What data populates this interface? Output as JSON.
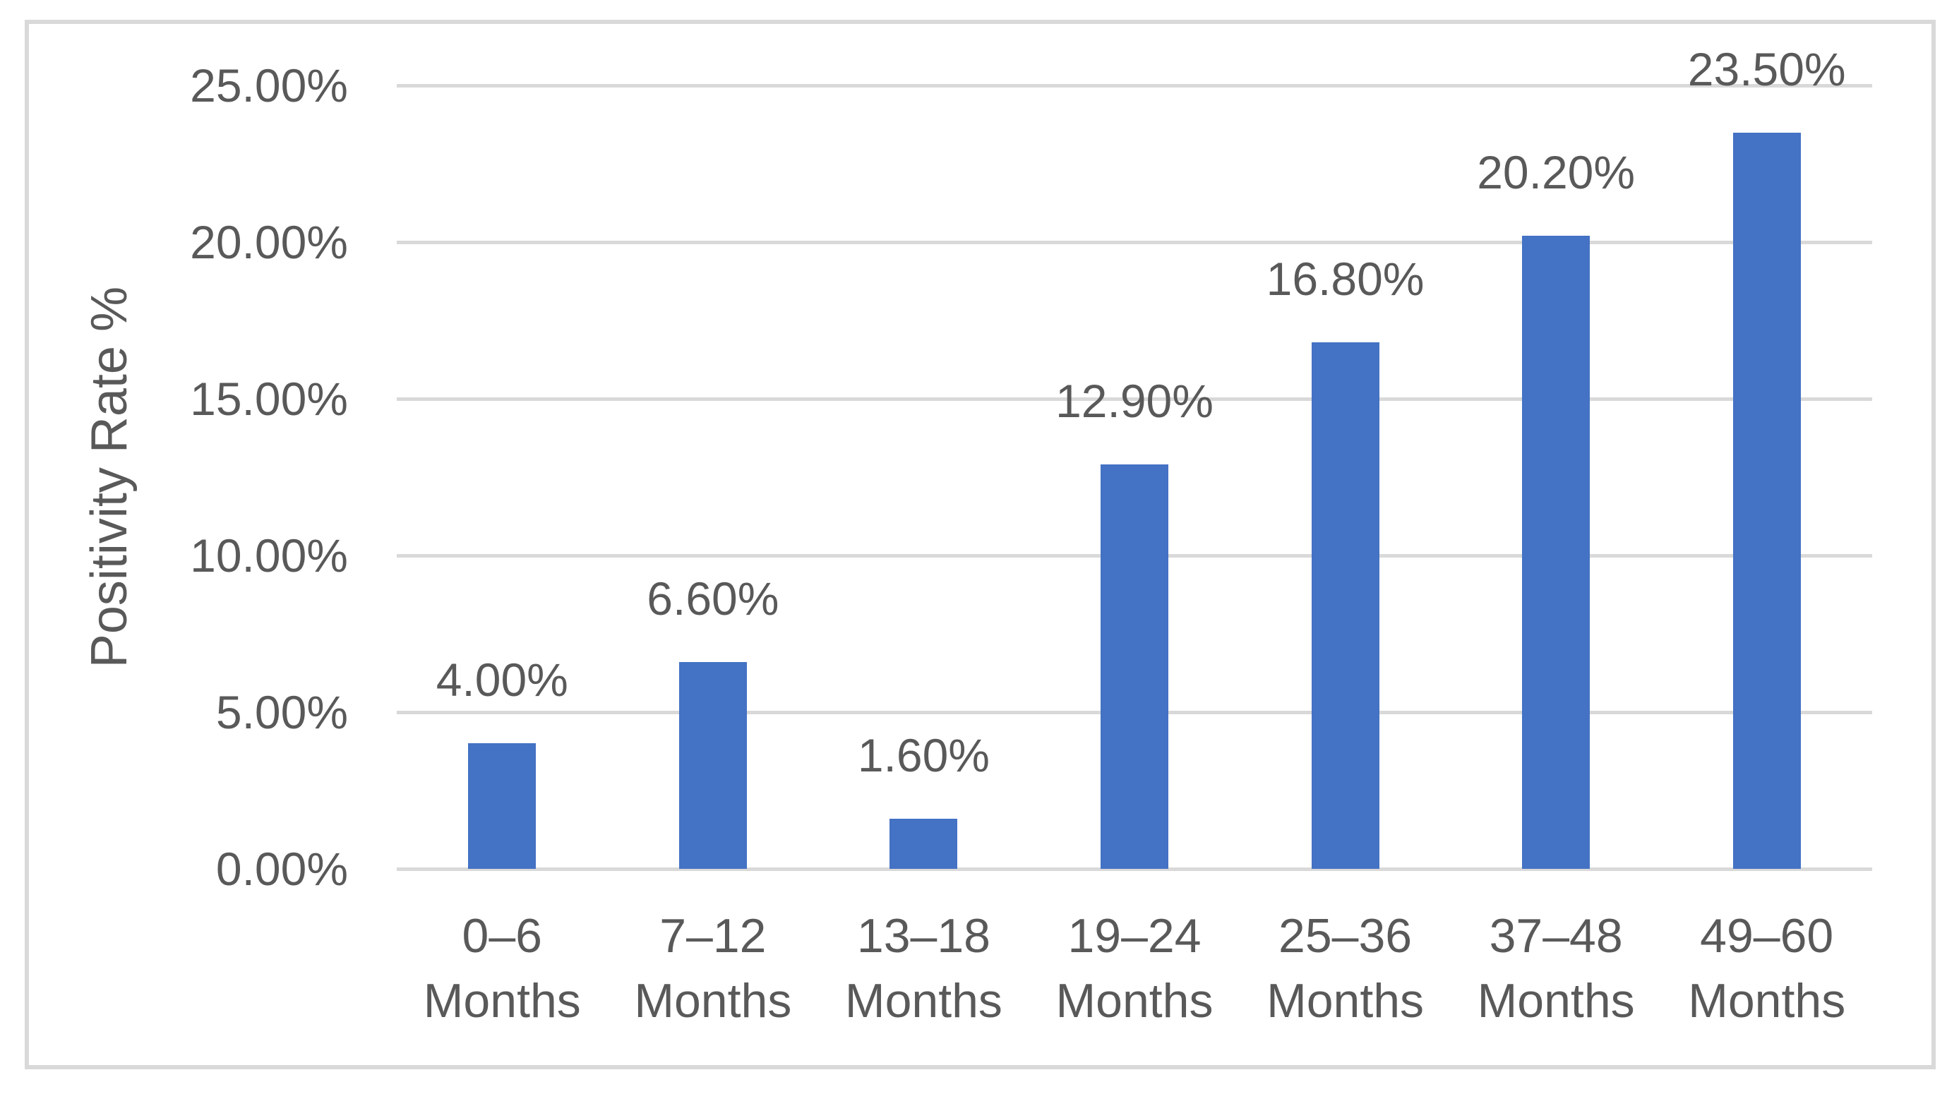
{
  "chart_data": {
    "type": "bar",
    "title": "",
    "xlabel": "",
    "ylabel": "Positivity Rate %",
    "categories": [
      "0–6 Months",
      "7–12 Months",
      "13–18 Months",
      "19–24 Months",
      "25–36 Months",
      "37–48 Months",
      "49–60 Months"
    ],
    "category_line1": [
      "0–6",
      "7–12",
      "13–18",
      "19–24",
      "25–36",
      "37–48",
      "49–60"
    ],
    "category_line2": "Months",
    "values": [
      4.0,
      6.6,
      1.6,
      12.9,
      16.8,
      20.2,
      23.5
    ],
    "data_labels": [
      "4.00%",
      "6.60%",
      "1.60%",
      "12.90%",
      "16.80%",
      "20.20%",
      "23.50%"
    ],
    "y_ticks": [
      {
        "value": 25,
        "label": "25.00%"
      },
      {
        "value": 20,
        "label": "20.00%"
      },
      {
        "value": 15,
        "label": "15.00%"
      },
      {
        "value": 10,
        "label": "10.00%"
      },
      {
        "value": 5,
        "label": "5.00%"
      },
      {
        "value": 0,
        "label": "0.00%"
      }
    ],
    "ylim": [
      0,
      25
    ],
    "grid": true,
    "legend": "none",
    "bar_color": "#4472C4",
    "gridline_color": "#D9D9D9",
    "frame_border_color": "#D9D9D9",
    "axis_text_color": "#595959"
  }
}
